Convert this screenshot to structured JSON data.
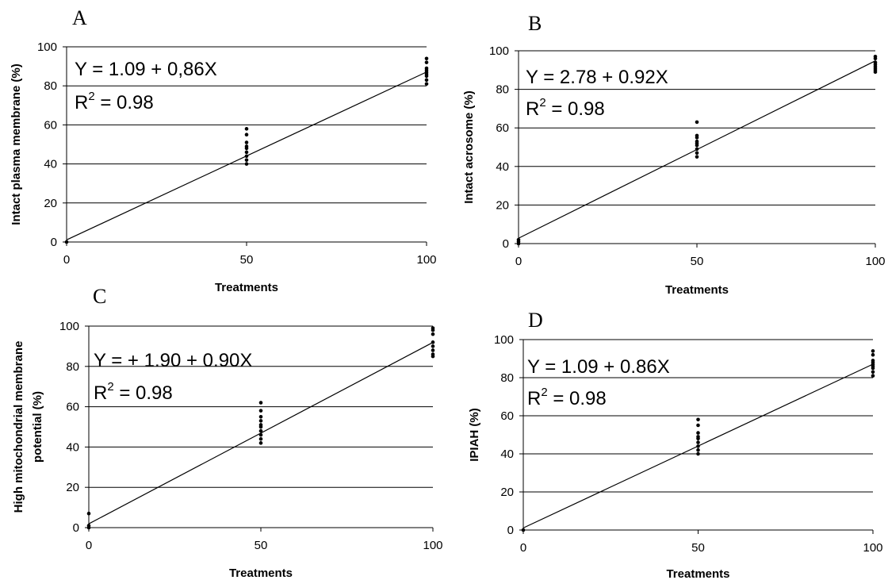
{
  "chart_data": [
    {
      "type": "scatter",
      "panel": "A",
      "ylabel": [
        "Intact plasma membrane (%)"
      ],
      "xlabel": "Treatments",
      "x_ticks": [
        "0",
        "50",
        "100"
      ],
      "y_ticks": [
        "0",
        "20",
        "40",
        "60",
        "80",
        "100"
      ],
      "xlim": [
        0,
        100
      ],
      "ylim": [
        0,
        100
      ],
      "grid": "horizontal",
      "equation": "Y = 1.09 + 0,86X",
      "r2_prefix": "R",
      "r2_sup": "2",
      "r2_suffix": " = 0.98",
      "fit": {
        "intercept": 1.09,
        "slope": 0.86
      },
      "x": [
        0,
        50,
        50,
        50,
        50,
        50,
        50,
        50,
        50,
        50,
        100,
        100,
        100,
        100,
        100,
        100,
        100,
        100,
        100
      ],
      "y": [
        0,
        40,
        42,
        44,
        46,
        48,
        49,
        51,
        55,
        58,
        81,
        83,
        85,
        86,
        87,
        88,
        89,
        92,
        94
      ]
    },
    {
      "type": "scatter",
      "panel": "B",
      "ylabel": [
        "Intact acrosome (%)"
      ],
      "xlabel": "Treatments",
      "x_ticks": [
        "0",
        "50",
        "100"
      ],
      "y_ticks": [
        "0",
        "20",
        "40",
        "60",
        "80",
        "100"
      ],
      "xlim": [
        0,
        100
      ],
      "ylim": [
        0,
        100
      ],
      "grid": "horizontal",
      "equation": "Y = 2.78 + 0.92X",
      "r2_prefix": "R",
      "r2_sup": "2",
      "r2_suffix": " = 0.98",
      "fit": {
        "intercept": 2.78,
        "slope": 0.92
      },
      "x": [
        0,
        0,
        0,
        50,
        50,
        50,
        50,
        50,
        50,
        50,
        50,
        50,
        100,
        100,
        100,
        100,
        100,
        100,
        100,
        100
      ],
      "y": [
        0,
        1,
        2,
        45,
        47,
        49,
        51,
        52,
        53,
        55,
        56,
        63,
        89,
        90,
        91,
        92,
        93,
        94,
        96,
        97
      ]
    },
    {
      "type": "scatter",
      "panel": "C",
      "ylabel": [
        "High mitochondrial membrane",
        "potential (%)"
      ],
      "xlabel": "Treatments",
      "x_ticks": [
        "0",
        "50",
        "100"
      ],
      "y_ticks": [
        "0",
        "20",
        "40",
        "60",
        "80",
        "100"
      ],
      "xlim": [
        0,
        100
      ],
      "ylim": [
        0,
        100
      ],
      "grid": "horizontal",
      "equation": "Y = + 1.90 + 0.90X",
      "r2_prefix": "R",
      "r2_sup": "2",
      "r2_suffix": " = 0.98",
      "fit": {
        "intercept": 1.9,
        "slope": 0.9
      },
      "x": [
        0,
        0,
        0,
        50,
        50,
        50,
        50,
        50,
        50,
        50,
        50,
        50,
        50,
        100,
        100,
        100,
        100,
        100,
        100,
        100,
        100
      ],
      "y": [
        0,
        1,
        7,
        42,
        44,
        46,
        48,
        50,
        51,
        53,
        55,
        58,
        62,
        85,
        86,
        88,
        90,
        92,
        96,
        98,
        99
      ]
    },
    {
      "type": "scatter",
      "panel": "D",
      "ylabel": [
        "IPIAH (%)"
      ],
      "xlabel": "Treatments",
      "x_ticks": [
        "0",
        "50",
        "100"
      ],
      "y_ticks": [
        "0",
        "20",
        "40",
        "60",
        "80",
        "100"
      ],
      "xlim": [
        0,
        100
      ],
      "ylim": [
        0,
        100
      ],
      "grid": "horizontal",
      "equation": "Y = 1.09 + 0.86X",
      "r2_prefix": "R",
      "r2_sup": "2",
      "r2_suffix": " = 0.98",
      "fit": {
        "intercept": 1.09,
        "slope": 0.86
      },
      "x": [
        0,
        50,
        50,
        50,
        50,
        50,
        50,
        50,
        50,
        50,
        100,
        100,
        100,
        100,
        100,
        100,
        100,
        100,
        100
      ],
      "y": [
        0,
        40,
        42,
        44,
        46,
        48,
        49,
        51,
        55,
        58,
        81,
        83,
        85,
        86,
        87,
        88,
        89,
        92,
        94
      ]
    }
  ]
}
